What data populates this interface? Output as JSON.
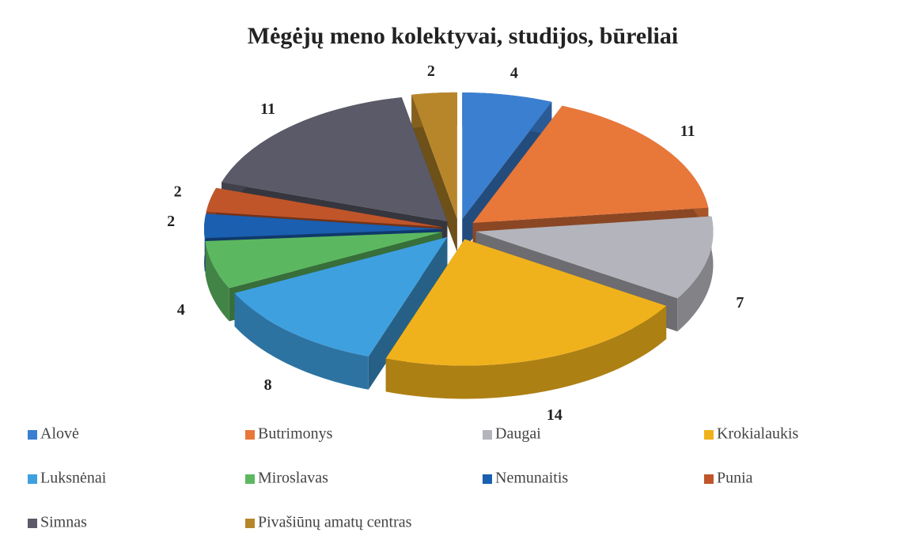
{
  "chart_data": {
    "type": "pie",
    "title": "Mėgėjų meno kolektyvai, studijos, būreliai",
    "categories": [
      "Alovė",
      "Butrimonys",
      "Daugai",
      "Krokialaukis",
      "Luksnėnai",
      "Miroslavas",
      "Nemunaitis",
      "Punia",
      "Simnas",
      "Pivašiūnų amatų centras"
    ],
    "values": [
      4,
      11,
      7,
      14,
      8,
      4,
      2,
      2,
      11,
      2
    ],
    "colors": [
      "#3a7fd0",
      "#e8773a",
      "#b4b4bc",
      "#f0b21c",
      "#3fa0e0",
      "#5cb860",
      "#1a5fb0",
      "#c0552a",
      "#5a5a68",
      "#b8862a"
    ],
    "legend": "bottom"
  }
}
